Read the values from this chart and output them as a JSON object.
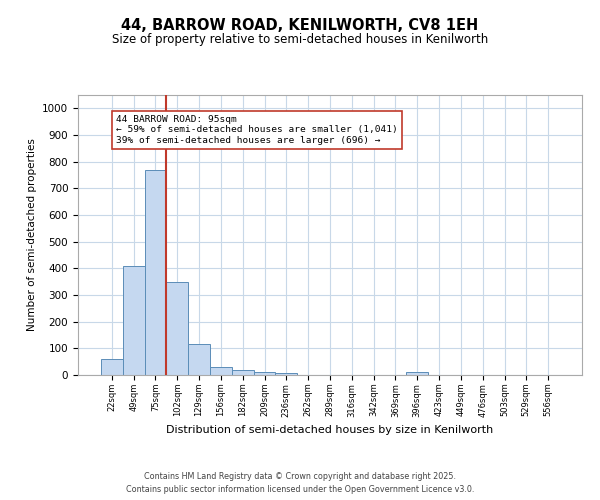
{
  "title": "44, BARROW ROAD, KENILWORTH, CV8 1EH",
  "subtitle": "Size of property relative to semi-detached houses in Kenilworth",
  "xlabel": "Distribution of semi-detached houses by size in Kenilworth",
  "ylabel": "Number of semi-detached properties",
  "categories": [
    "22sqm",
    "49sqm",
    "75sqm",
    "102sqm",
    "129sqm",
    "156sqm",
    "182sqm",
    "209sqm",
    "236sqm",
    "262sqm",
    "289sqm",
    "316sqm",
    "342sqm",
    "369sqm",
    "396sqm",
    "423sqm",
    "449sqm",
    "476sqm",
    "503sqm",
    "529sqm",
    "556sqm"
  ],
  "values": [
    60,
    410,
    770,
    350,
    115,
    30,
    18,
    10,
    7,
    0,
    0,
    0,
    0,
    0,
    10,
    0,
    0,
    0,
    0,
    0,
    0
  ],
  "bar_color": "#c5d8f0",
  "bar_edge_color": "#5b8db8",
  "property_line_color": "#c0392b",
  "annotation_text_line1": "44 BARROW ROAD: 95sqm",
  "annotation_text_line2": "← 59% of semi-detached houses are smaller (1,041)",
  "annotation_text_line3": "39% of semi-detached houses are larger (696) →",
  "ylim": [
    0,
    1050
  ],
  "yticks": [
    0,
    100,
    200,
    300,
    400,
    500,
    600,
    700,
    800,
    900,
    1000
  ],
  "background_color": "#ffffff",
  "grid_color": "#c8d8e8",
  "footer_line1": "Contains HM Land Registry data © Crown copyright and database right 2025.",
  "footer_line2": "Contains public sector information licensed under the Open Government Licence v3.0."
}
